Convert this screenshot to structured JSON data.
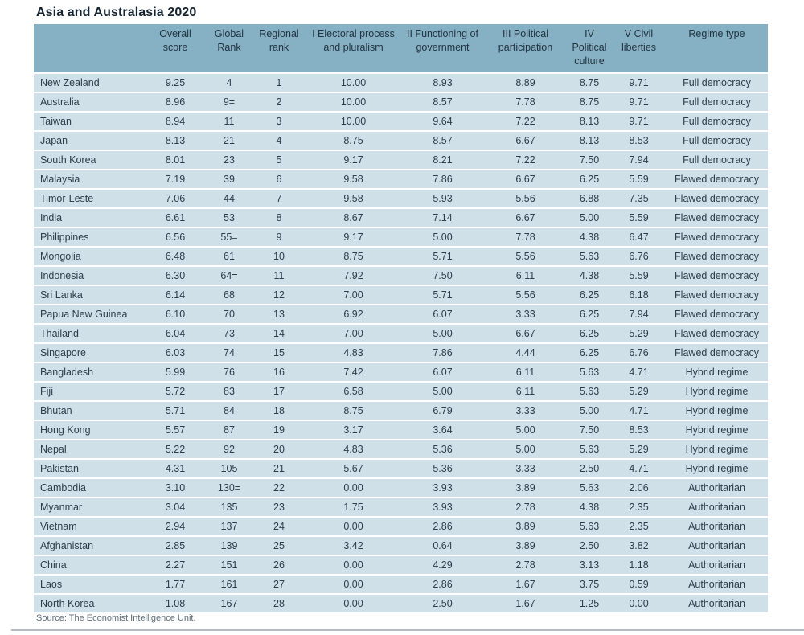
{
  "title": "Asia and Australasia 2020",
  "source_note": "Source: The Economist Intelligence Unit.",
  "colors": {
    "header_bg": "#86b0c3",
    "row_bg": "#cfe0e9",
    "header_text": "#223441",
    "cell_text": "#2e3d48",
    "title_text": "#15232e",
    "source_text": "#5f6e78",
    "page_edge": "#b6bbc1",
    "page_bg": "#ffffff"
  },
  "table": {
    "column_headers": [
      "",
      "Overall\nscore",
      "Global\nRank",
      "Regional\nrank",
      "I Electoral process\nand pluralism",
      "II Functioning of\ngovernment",
      "III Political\nparticipation",
      "IV Political\nculture",
      "V Civil\nliberties",
      "Regime type"
    ],
    "rows": [
      [
        "New Zealand",
        "9.25",
        "4",
        "1",
        "10.00",
        "8.93",
        "8.89",
        "8.75",
        "9.71",
        "Full democracy"
      ],
      [
        "Australia",
        "8.96",
        "9=",
        "2",
        "10.00",
        "8.57",
        "7.78",
        "8.75",
        "9.71",
        "Full democracy"
      ],
      [
        "Taiwan",
        "8.94",
        "11",
        "3",
        "10.00",
        "9.64",
        "7.22",
        "8.13",
        "9.71",
        "Full democracy"
      ],
      [
        "Japan",
        "8.13",
        "21",
        "4",
        "8.75",
        "8.57",
        "6.67",
        "8.13",
        "8.53",
        "Full democracy"
      ],
      [
        "South Korea",
        "8.01",
        "23",
        "5",
        "9.17",
        "8.21",
        "7.22",
        "7.50",
        "7.94",
        "Full democracy"
      ],
      [
        "Malaysia",
        "7.19",
        "39",
        "6",
        "9.58",
        "7.86",
        "6.67",
        "6.25",
        "5.59",
        "Flawed democracy"
      ],
      [
        "Timor-Leste",
        "7.06",
        "44",
        "7",
        "9.58",
        "5.93",
        "5.56",
        "6.88",
        "7.35",
        "Flawed democracy"
      ],
      [
        "India",
        "6.61",
        "53",
        "8",
        "8.67",
        "7.14",
        "6.67",
        "5.00",
        "5.59",
        "Flawed democracy"
      ],
      [
        "Philippines",
        "6.56",
        "55=",
        "9",
        "9.17",
        "5.00",
        "7.78",
        "4.38",
        "6.47",
        "Flawed democracy"
      ],
      [
        "Mongolia",
        "6.48",
        "61",
        "10",
        "8.75",
        "5.71",
        "5.56",
        "5.63",
        "6.76",
        "Flawed democracy"
      ],
      [
        "Indonesia",
        "6.30",
        "64=",
        "11",
        "7.92",
        "7.50",
        "6.11",
        "4.38",
        "5.59",
        "Flawed democracy"
      ],
      [
        "Sri Lanka",
        "6.14",
        "68",
        "12",
        "7.00",
        "5.71",
        "5.56",
        "6.25",
        "6.18",
        "Flawed democracy"
      ],
      [
        "Papua New Guinea",
        "6.10",
        "70",
        "13",
        "6.92",
        "6.07",
        "3.33",
        "6.25",
        "7.94",
        "Flawed democracy"
      ],
      [
        "Thailand",
        "6.04",
        "73",
        "14",
        "7.00",
        "5.00",
        "6.67",
        "6.25",
        "5.29",
        "Flawed democracy"
      ],
      [
        "Singapore",
        "6.03",
        "74",
        "15",
        "4.83",
        "7.86",
        "4.44",
        "6.25",
        "6.76",
        "Flawed democracy"
      ],
      [
        "Bangladesh",
        "5.99",
        "76",
        "16",
        "7.42",
        "6.07",
        "6.11",
        "5.63",
        "4.71",
        "Hybrid regime"
      ],
      [
        "Fiji",
        "5.72",
        "83",
        "17",
        "6.58",
        "5.00",
        "6.11",
        "5.63",
        "5.29",
        "Hybrid regime"
      ],
      [
        "Bhutan",
        "5.71",
        "84",
        "18",
        "8.75",
        "6.79",
        "3.33",
        "5.00",
        "4.71",
        "Hybrid regime"
      ],
      [
        "Hong Kong",
        "5.57",
        "87",
        "19",
        "3.17",
        "3.64",
        "5.00",
        "7.50",
        "8.53",
        "Hybrid regime"
      ],
      [
        "Nepal",
        "5.22",
        "92",
        "20",
        "4.83",
        "5.36",
        "5.00",
        "5.63",
        "5.29",
        "Hybrid regime"
      ],
      [
        "Pakistan",
        "4.31",
        "105",
        "21",
        "5.67",
        "5.36",
        "3.33",
        "2.50",
        "4.71",
        "Hybrid regime"
      ],
      [
        "Cambodia",
        "3.10",
        "130=",
        "22",
        "0.00",
        "3.93",
        "3.89",
        "5.63",
        "2.06",
        "Authoritarian"
      ],
      [
        "Myanmar",
        "3.04",
        "135",
        "23",
        "1.75",
        "3.93",
        "2.78",
        "4.38",
        "2.35",
        "Authoritarian"
      ],
      [
        "Vietnam",
        "2.94",
        "137",
        "24",
        "0.00",
        "2.86",
        "3.89",
        "5.63",
        "2.35",
        "Authoritarian"
      ],
      [
        "Afghanistan",
        "2.85",
        "139",
        "25",
        "3.42",
        "0.64",
        "3.89",
        "2.50",
        "3.82",
        "Authoritarian"
      ],
      [
        "China",
        "2.27",
        "151",
        "26",
        "0.00",
        "4.29",
        "2.78",
        "3.13",
        "1.18",
        "Authoritarian"
      ],
      [
        "Laos",
        "1.77",
        "161",
        "27",
        "0.00",
        "2.86",
        "1.67",
        "3.75",
        "0.59",
        "Authoritarian"
      ],
      [
        "North Korea",
        "1.08",
        "167",
        "28",
        "0.00",
        "2.50",
        "1.67",
        "1.25",
        "0.00",
        "Authoritarian"
      ]
    ]
  }
}
